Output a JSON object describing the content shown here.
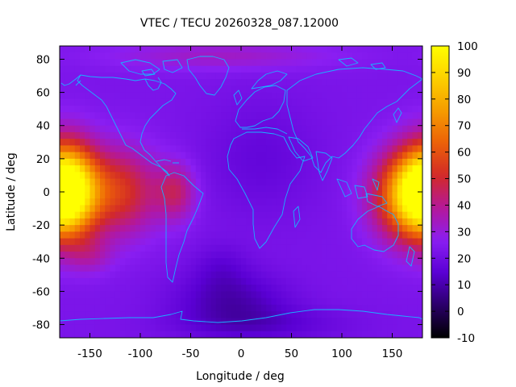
{
  "chart_data": {
    "type": "heatmap",
    "title": "VTEC / TECU 20260328_087.12000",
    "xlabel": "Longitude / deg",
    "ylabel": "Latitude / deg",
    "xlim": [
      -180,
      180
    ],
    "ylim": [
      -88,
      88
    ],
    "x_ticks": [
      -150,
      -100,
      -50,
      0,
      50,
      100,
      150
    ],
    "y_ticks": [
      -80,
      -60,
      -40,
      -20,
      0,
      20,
      40,
      60,
      80
    ],
    "x_tick_labels": [
      "-150",
      "-100",
      "-50",
      "0",
      "50",
      "100",
      "150"
    ],
    "y_tick_labels": [
      "-80",
      "-60",
      "-40",
      "-20",
      "0",
      "20",
      "40",
      "60",
      "80"
    ],
    "colorbar": {
      "range": [
        -10,
        100
      ],
      "ticks": [
        -10,
        0,
        10,
        20,
        30,
        40,
        50,
        60,
        70,
        80,
        90,
        100
      ],
      "tick_labels": [
        "-10",
        "0",
        "10",
        "20",
        "30",
        "40",
        "50",
        "60",
        "70",
        "80",
        "90",
        "100"
      ],
      "palette": [
        "#000000",
        "#2a0068",
        "#5a00d4",
        "#8a1ef2",
        "#b4189a",
        "#d22a28",
        "#ec6008",
        "#f69c00",
        "#fdd000",
        "#ffff00"
      ]
    },
    "background_vtec": 23,
    "features": [
      {
        "name": "pacific-peak-west",
        "lon": -172,
        "lat": 2,
        "amp": 62,
        "sigma_lon": 20,
        "sigma_lat": 19
      },
      {
        "name": "pacific-peak-east",
        "lon": 170,
        "lat": -2,
        "amp": 58,
        "sigma_lon": 26,
        "sigma_lat": 18
      },
      {
        "name": "central-pacific-enhancement",
        "lon": -120,
        "lat": 0,
        "amp": 30,
        "sigma_lon": 26,
        "sigma_lat": 18
      },
      {
        "name": "south-america-anomaly",
        "lon": -65,
        "lat": 0,
        "amp": 20,
        "sigma_lon": 14,
        "sigma_lat": 12
      },
      {
        "name": "south-pacific-patch",
        "lon": -150,
        "lat": -38,
        "amp": 10,
        "sigma_lon": 16,
        "sigma_lat": 8
      },
      {
        "name": "atlantic-low",
        "lon": -10,
        "lat": -65,
        "amp": -12,
        "sigma_lon": 40,
        "sigma_lat": 12
      },
      {
        "name": "south-atlantic-low",
        "lon": -20,
        "lat": -45,
        "amp": -6,
        "sigma_lon": 20,
        "sigma_lat": 10
      },
      {
        "name": "antarctic-low",
        "lon": 20,
        "lat": -80,
        "amp": -8,
        "sigma_lon": 60,
        "sigma_lat": 8
      },
      {
        "name": "europe-africa-low",
        "lon": 20,
        "lat": 20,
        "amp": -6,
        "sigma_lon": 40,
        "sigma_lat": 25
      },
      {
        "name": "arctic-enhancement",
        "lon": -20,
        "lat": 82,
        "amp": 10,
        "sigma_lon": 80,
        "sigma_lat": 6
      }
    ]
  }
}
